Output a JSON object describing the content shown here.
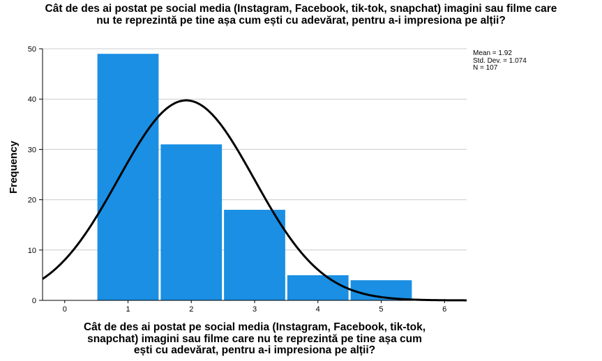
{
  "title_lines": [
    "Cât de des ai postat pe social media (Instagram, Facebook, tik-tok, snapchat) imagini sau filme care",
    "nu te reprezintă pe tine așa cum ești cu adevărat, pentru a-i impresiona pe alții?"
  ],
  "xlabel_lines": [
    "Cât de des ai postat pe social media (Instagram, Facebook, tik-tok,",
    "snapchat) imagini sau filme care nu te reprezintă pe tine așa cum",
    "ești cu adevărat, pentru a-i impresiona pe alții?"
  ],
  "stats": {
    "mean": "Mean = 1.92",
    "std": "Std. Dev. = 1.074",
    "n": "N = 107"
  },
  "chart_data": {
    "type": "bar",
    "categories": [
      "1",
      "2",
      "3",
      "4",
      "5"
    ],
    "values": [
      49,
      31,
      18,
      5,
      4
    ],
    "x_ticks": [
      "0",
      "1",
      "2",
      "3",
      "4",
      "5",
      "6"
    ],
    "y_ticks": [
      "0",
      "10",
      "20",
      "30",
      "40",
      "50"
    ],
    "xlim": [
      -0.35,
      6.35
    ],
    "ylim": [
      0,
      50
    ],
    "ylabel": "Frequency",
    "grid": true,
    "normal_curve": {
      "mean": 1.92,
      "std": 1.074,
      "n": 107,
      "bin_width": 1
    },
    "colors": {
      "bar": "#1a8fe3",
      "curve": "#000000",
      "grid": "#cccccc",
      "axis": "#000000"
    }
  }
}
